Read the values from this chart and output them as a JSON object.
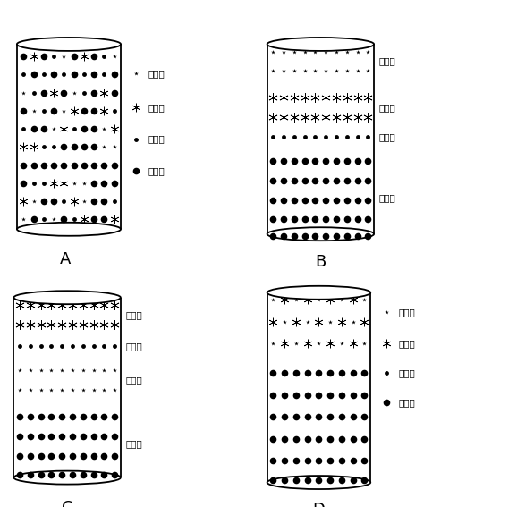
{
  "bg": "#ffffff",
  "label_fontsize": 13,
  "text_fontsize": 7.5,
  "panels": {
    "A": {
      "label": "A",
      "legend_inside": true,
      "legend_labels": [
        "脂肪酶",
        "无机碱",
        "助滤剂",
        "吸附剂"
      ]
    },
    "B": {
      "label": "B",
      "legend_inside": false,
      "layer_labels": [
        "脂肪酶",
        "无机碱\n助滤剂",
        "吸附剂"
      ]
    },
    "C": {
      "label": "C",
      "legend_inside": false,
      "layer_labels": [
        "无机碱",
        "助滤剂",
        "脂肪酶",
        "吸附剂"
      ]
    },
    "D": {
      "label": "D",
      "legend_inside": true,
      "legend_labels": [
        "脂肪酶",
        "无机碱",
        "助滤剂",
        "吸附剂"
      ]
    }
  }
}
